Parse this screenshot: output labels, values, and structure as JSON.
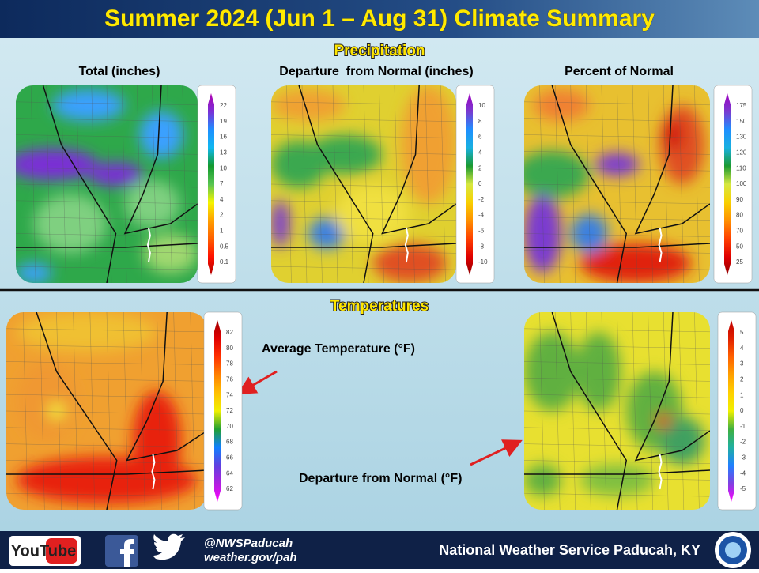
{
  "header": {
    "title": "Summer 2024 (Jun 1 – Aug 31) Climate Summary"
  },
  "precipitation": {
    "heading": "Precipitation",
    "panels": [
      {
        "title": "Total (inches)",
        "legend": [
          "22",
          "19",
          "16",
          "13",
          "10",
          "7",
          "4",
          "2",
          "1",
          "0.5",
          "0.1"
        ]
      },
      {
        "title": "Departure  from Normal (inches)",
        "legend": [
          "10",
          "8",
          "6",
          "4",
          "2",
          "0",
          "-2",
          "-4",
          "-6",
          "-8",
          "-10"
        ]
      },
      {
        "title": "Percent of Normal",
        "legend": [
          "175",
          "150",
          "130",
          "120",
          "110",
          "100",
          "90",
          "80",
          "70",
          "50",
          "25"
        ]
      }
    ]
  },
  "temperatures": {
    "heading": "Temperatures",
    "panels": [
      {
        "annotation": "Average Temperature (°F)",
        "legend": [
          "82",
          "80",
          "78",
          "76",
          "74",
          "72",
          "70",
          "68",
          "66",
          "64",
          "62"
        ]
      },
      {
        "annotation": "Departure from Normal (°F)",
        "legend": [
          "5",
          "4",
          "3",
          "2",
          "1",
          "0",
          "-1",
          "-2",
          "-3",
          "-4",
          "-5"
        ]
      }
    ]
  },
  "footer": {
    "youtube": "YouTube",
    "handle": "@NWSPaducah",
    "url": "weather.gov/pah",
    "office": "National Weather Service Paducah, KY"
  }
}
